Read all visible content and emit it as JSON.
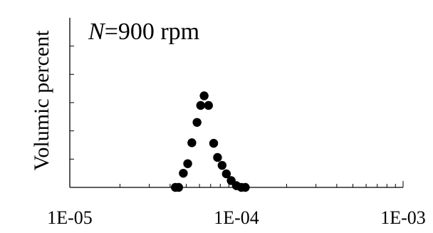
{
  "chart_data": {
    "type": "scatter",
    "title": "",
    "annotation": {
      "italic_part": "N",
      "rest": "=900 rpm"
    },
    "xlabel": "",
    "ylabel": "Volumic percent",
    "x_scale": "log",
    "xlim": [
      1e-05,
      0.001
    ],
    "x_tick_labels": [
      "1E-05",
      "1E-04",
      "1E-03"
    ],
    "x_tick_values": [
      1e-05,
      0.0001,
      0.001
    ],
    "ylim": [
      0,
      30
    ],
    "y_tick_values": [
      0,
      5,
      10,
      15,
      20,
      25
    ],
    "y_tick_labels_visible": false,
    "grid": false,
    "legend": "none",
    "marker_color": "#000000",
    "series": [
      {
        "points": [
          {
            "x": 4.3e-05,
            "y": 0.0
          },
          {
            "x": 4.5e-05,
            "y": 0.0
          },
          {
            "x": 4.8e-05,
            "y": 2.5
          },
          {
            "x": 5.1e-05,
            "y": 4.2
          },
          {
            "x": 5.4e-05,
            "y": 7.9
          },
          {
            "x": 5.8e-05,
            "y": 11.5
          },
          {
            "x": 6.1e-05,
            "y": 14.5
          },
          {
            "x": 6.4e-05,
            "y": 16.2
          },
          {
            "x": 6.8e-05,
            "y": 14.5
          },
          {
            "x": 7.3e-05,
            "y": 7.8
          },
          {
            "x": 7.7e-05,
            "y": 5.3
          },
          {
            "x": 8.2e-05,
            "y": 3.9
          },
          {
            "x": 8.7e-05,
            "y": 2.4
          },
          {
            "x": 9.3e-05,
            "y": 1.2
          },
          {
            "x": 0.0001,
            "y": 0.3
          },
          {
            "x": 0.000107,
            "y": 0.0
          },
          {
            "x": 0.000113,
            "y": 0.0
          }
        ]
      }
    ]
  }
}
